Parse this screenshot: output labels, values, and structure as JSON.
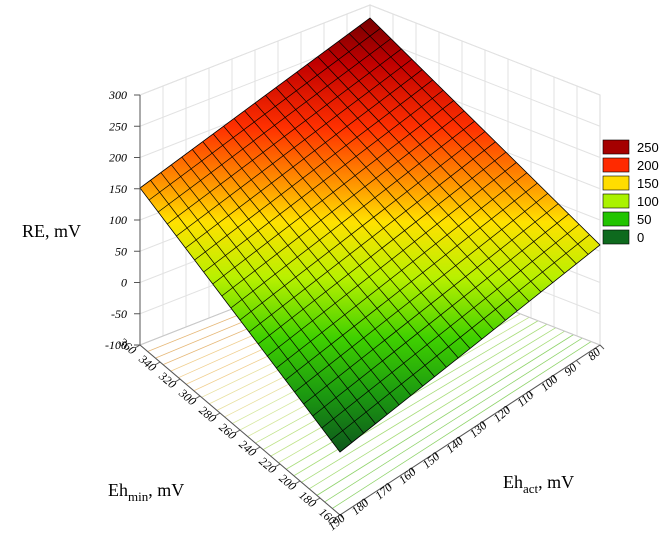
{
  "chart_data": {
    "type": "surface",
    "z_axis": {
      "label": "RE, mV",
      "ticks": [
        -100,
        -50,
        0,
        50,
        100,
        150,
        200,
        250,
        300
      ],
      "range": [
        -100,
        300
      ]
    },
    "x_axis": {
      "label_main": "Eh",
      "label_sub": "act",
      "label_unit": ", mV",
      "ticks": [
        80,
        90,
        100,
        110,
        120,
        130,
        140,
        150,
        160,
        170,
        180,
        190
      ],
      "range": [
        80,
        190
      ]
    },
    "y_axis": {
      "label_main": "Eh",
      "label_sub": "min",
      "label_unit": ", mV",
      "ticks": [
        160,
        180,
        200,
        220,
        240,
        260,
        280,
        300,
        320,
        340,
        360
      ],
      "range": [
        160,
        360
      ]
    },
    "surface_corners": {
      "Eh_act_80_Eh_min_160": 92,
      "Eh_act_190_Eh_min_360": 92,
      "Eh_act_80_Eh_min_360": 300,
      "Eh_act_190_Eh_min_160": -113
    },
    "legend": [
      {
        "label": "250",
        "color": "#a50000"
      },
      {
        "label": "200",
        "color": "#ff2a00"
      },
      {
        "label": "150",
        "color": "#ffdd00"
      },
      {
        "label": "100",
        "color": "#aaf200"
      },
      {
        "label": "50",
        "color": "#22c400"
      },
      {
        "label": "0",
        "color": "#0e6a1e"
      }
    ],
    "grid": true
  }
}
